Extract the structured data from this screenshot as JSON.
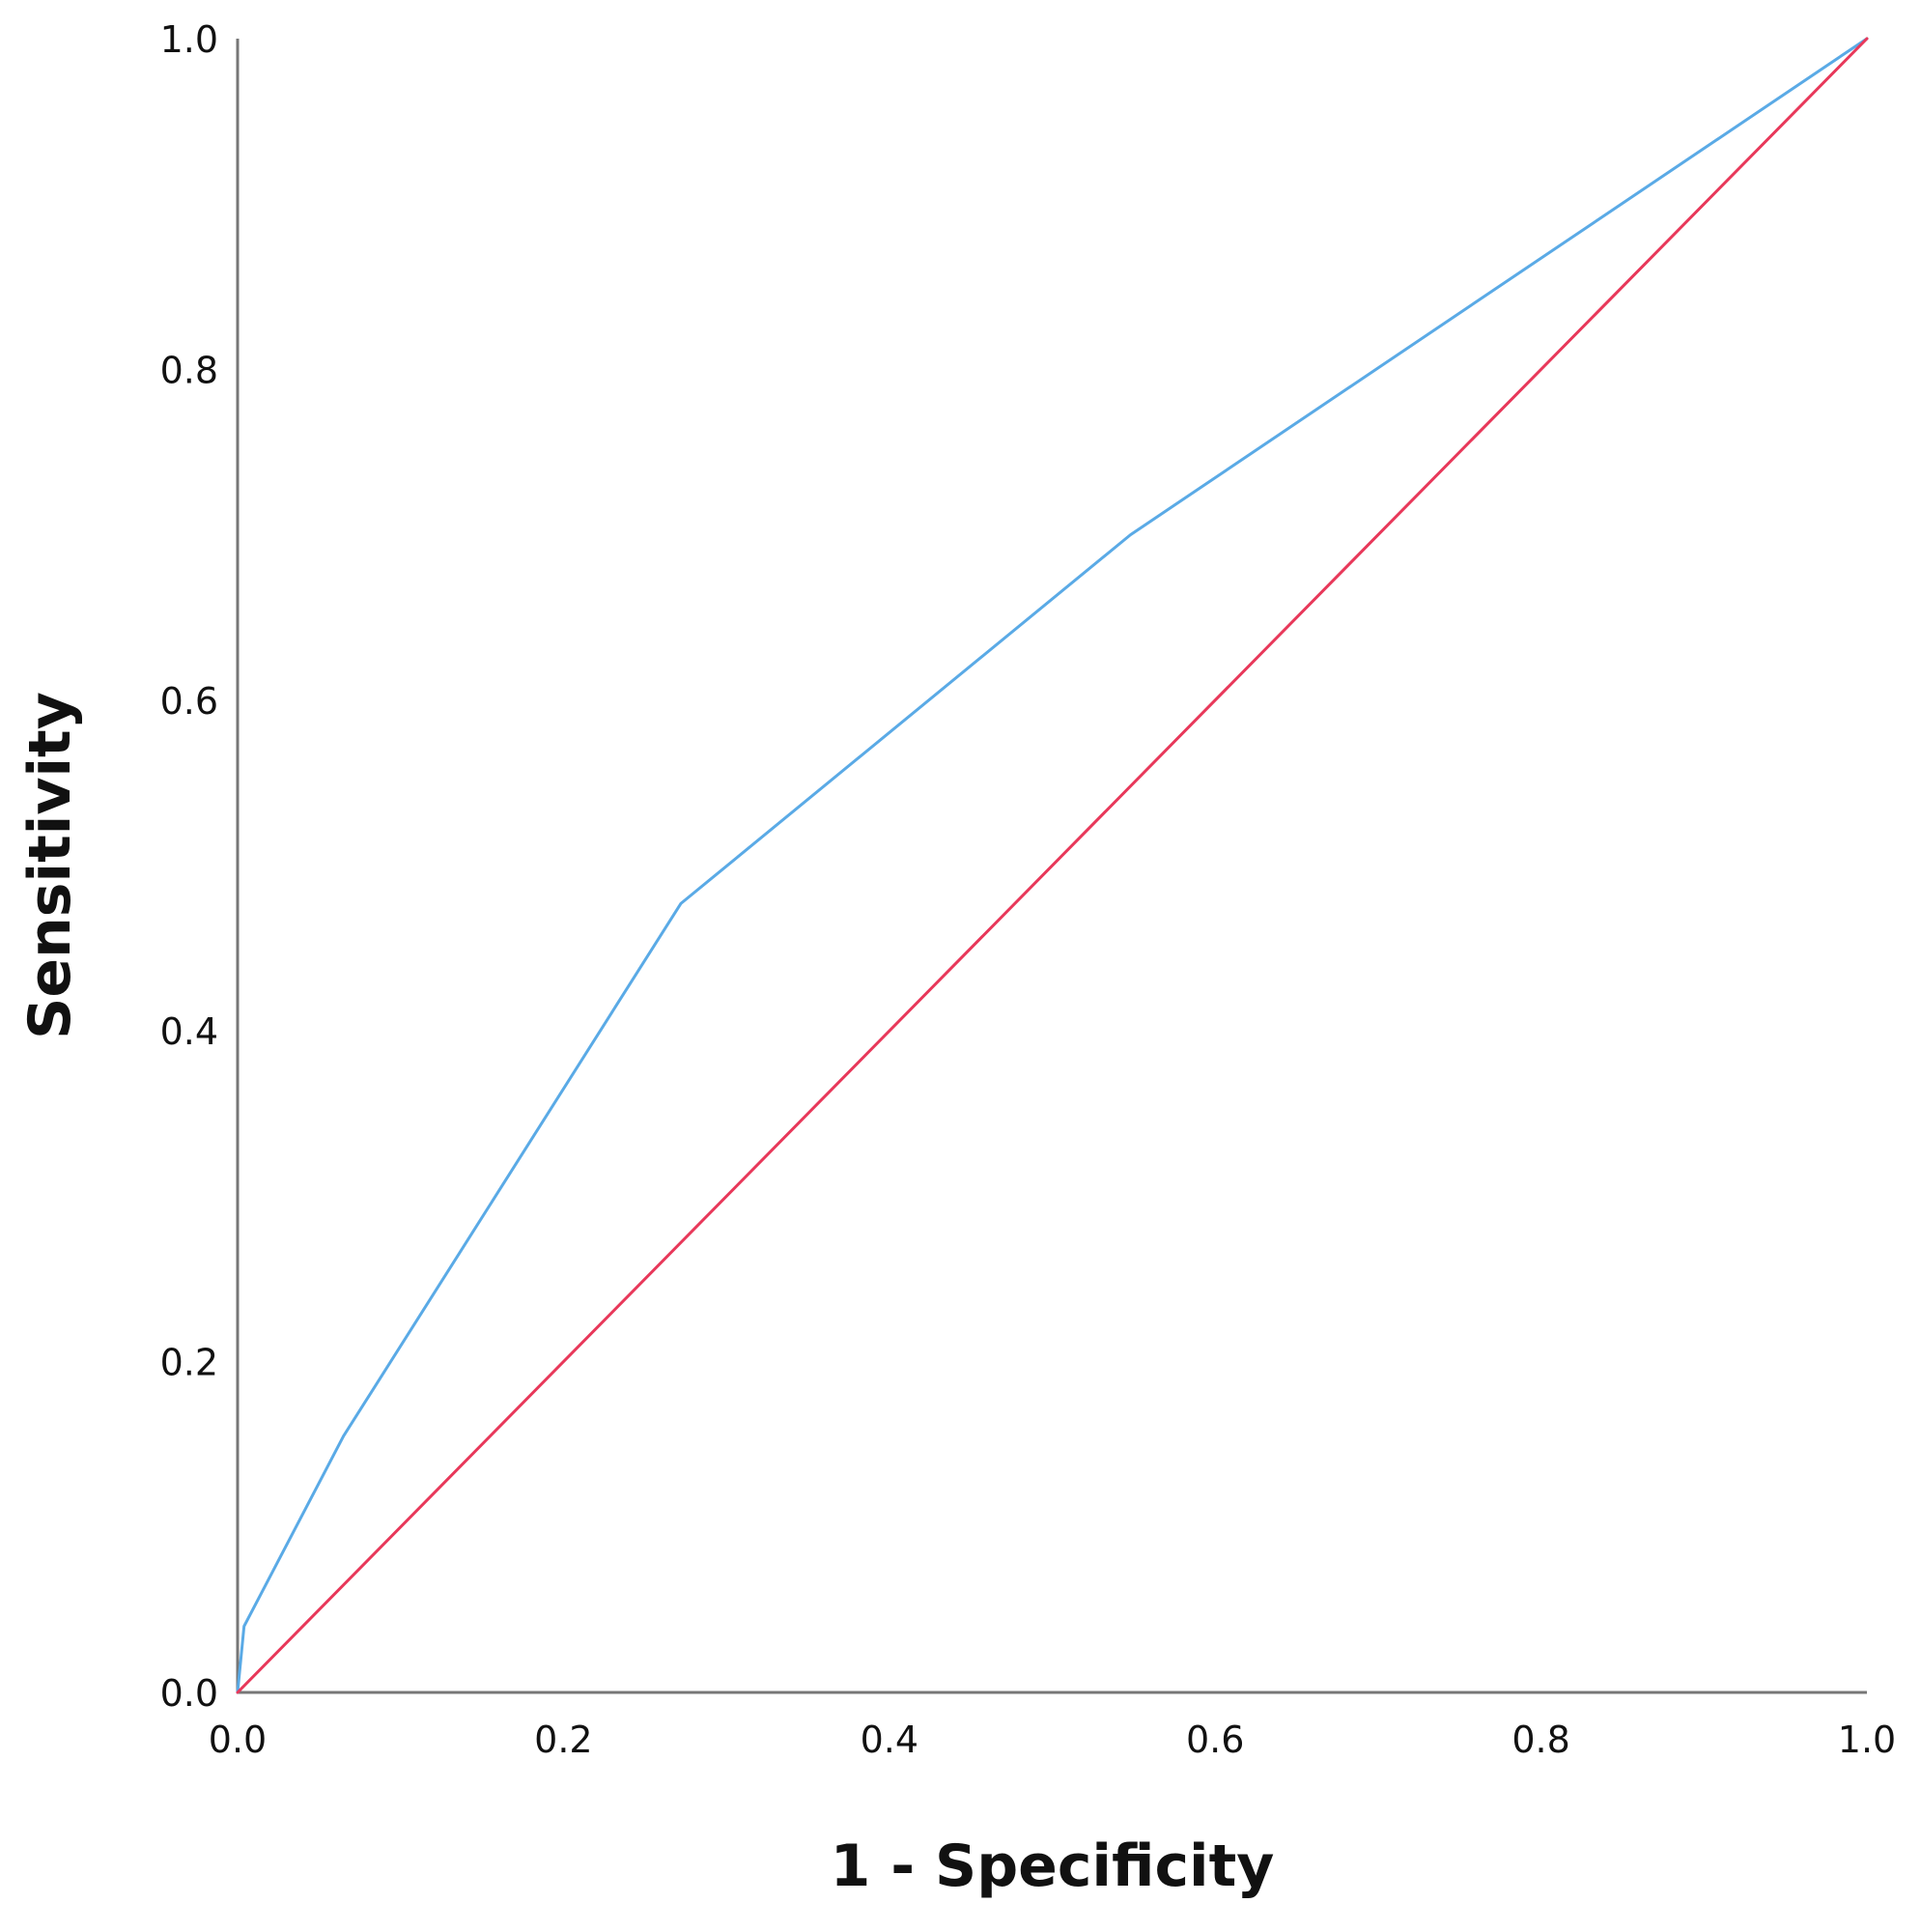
{
  "chart_data": {
    "type": "line",
    "xlabel": "1 - Specificity",
    "ylabel": "Sensitivity",
    "xlim": [
      0,
      1
    ],
    "ylim": [
      0,
      1
    ],
    "x_ticks": [
      "0.0",
      "0.2",
      "0.4",
      "0.6",
      "0.8",
      "1.0"
    ],
    "y_ticks": [
      "0.0",
      "0.2",
      "0.4",
      "0.6",
      "0.8",
      "1.0"
    ],
    "grid": false,
    "legend": "none",
    "series": [
      {
        "color": "#5aaae6",
        "x": [
          0.0,
          0.004,
          0.065,
          0.272,
          0.548,
          1.0
        ],
        "y": [
          0.0,
          0.04,
          0.155,
          0.477,
          0.7,
          1.0
        ]
      },
      {
        "color": "#e8385a",
        "x": [
          0.0,
          1.0
        ],
        "y": [
          0.0,
          1.0
        ]
      }
    ]
  }
}
